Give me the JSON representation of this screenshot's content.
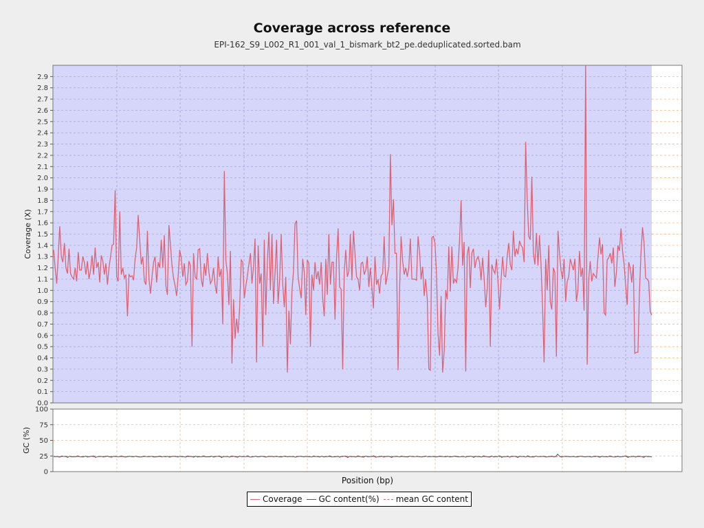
{
  "chart_data": {
    "type": "line",
    "title": "Coverage across reference",
    "subtitle": "EPI-162_S9_L002_R1_001_val_1_bismark_bt2_pe.deduplicated.sorted.bam",
    "xlabel": "Position (bp)",
    "panels": [
      {
        "name": "coverage",
        "ylabel": "Coverage (X)",
        "ylim": [
          0,
          3.0
        ],
        "yticks": [
          "0.0",
          "0.1",
          "0.2",
          "0.3",
          "0.4",
          "0.5",
          "0.6",
          "0.7",
          "0.8",
          "0.9",
          "1.0",
          "1.1",
          "1.2",
          "1.3",
          "1.4",
          "1.5",
          "1.6",
          "1.7",
          "1.8",
          "1.9",
          "2.0",
          "2.1",
          "2.2",
          "2.3",
          "2.4",
          "2.5",
          "2.6",
          "2.7",
          "2.8",
          "2.9"
        ],
        "series": [
          {
            "name": "Coverage",
            "color": "#e06070",
            "values": [
              1.36,
              1.2,
              1.06,
              1.3,
              1.57,
              1.3,
              1.25,
              1.42,
              1.2,
              1.15,
              1.37,
              1.15,
              1.12,
              1.1,
              1.2,
              1.08,
              1.34,
              1.18,
              1.18,
              1.3,
              1.25,
              1.14,
              1.26,
              1.1,
              1.18,
              1.31,
              1.14,
              1.38,
              1.2,
              1.25,
              1.07,
              1.31,
              1.26,
              1.14,
              1.24,
              1.05,
              1.2,
              1.3,
              1.4,
              1.41,
              1.89,
              1.12,
              1.08,
              1.7,
              1.14,
              1.2,
              1.11,
              1.14,
              0.77,
              1.14,
              1.12,
              1.13,
              1.09,
              1.28,
              1.38,
              1.67,
              1.45,
              1.23,
              1.3,
              1.08,
              1.05,
              1.53,
              1.1,
              0.97,
              1.12,
              1.25,
              1.3,
              1.07,
              1.25,
              1.2,
              1.45,
              1.2,
              1.49,
              1.04,
              0.96,
              1.58,
              1.4,
              1.22,
              1.11,
              1.04,
              0.95,
              1.13,
              1.36,
              1.29,
              1.12,
              1.24,
              1.05,
              1.08,
              1.26,
              1.22,
              0.5,
              1.33,
              1.12,
              1.1,
              1.36,
              1.37,
              1.1,
              1.03,
              1.24,
              1.13,
              1.33,
              1.16,
              1.06,
              1.09,
              1.2,
              1.05,
              0.97,
              1.3,
              1.12,
              1.19,
              0.7,
              2.06,
              1.27,
              1.15,
              0.87,
              1.35,
              0.35,
              0.92,
              0.57,
              0.75,
              0.62,
              0.85,
              1.27,
              1.25,
              0.93,
              1.04,
              1.13,
              1.23,
              1.33,
              1.06,
              1.21,
              1.46,
              0.36,
              1.4,
              1.06,
              1.15,
              0.5,
              1.45,
              0.78,
              1.26,
              1.52,
              1.0,
              1.5,
              0.88,
              1.16,
              1.45,
              0.88,
              1.1,
              1.5,
              1.06,
              0.85,
              1.12,
              0.27,
              0.82,
              0.52,
              1.0,
              1.17,
              1.59,
              1.62,
              1.12,
              1.02,
              0.93,
              1.28,
              1.16,
              0.78,
              1.27,
              1.24,
              0.5,
              1.14,
              1.0,
              1.25,
              1.1,
              1.17,
              1.05,
              1.25,
              0.93,
              0.77,
              1.28,
              0.96,
              1.5,
              1.05,
              1.25,
              1.25,
              0.74,
              1.29,
              1.55,
              1.03,
              1.01,
              0.3,
              1.16,
              1.36,
              1.12,
              1.17,
              1.5,
              1.09,
              1.53,
              1.32,
              1.12,
              1.1,
              1.0,
              1.24,
              1.25,
              1.14,
              1.18,
              1.3,
              1.03,
              1.2,
              1.02,
              0.84,
              1.3,
              1.05,
              1.1,
              0.97,
              1.13,
              1.15,
              1.48,
              1.05,
              1.13,
              1.21,
              2.21,
              1.58,
              1.81,
              1.33,
              1.33,
              0.29,
              1.0,
              1.48,
              1.26,
              1.14,
              1.2,
              1.12,
              1.2,
              1.46,
              1.1,
              1.1,
              1.1,
              1.09,
              1.48,
              1.34,
              1.1,
              1.21,
              0.95,
              1.1,
              0.92,
              0.3,
              0.29,
              1.47,
              1.48,
              1.42,
              1.15,
              0.62,
              0.42,
              0.95,
              0.27,
              0.46,
              1.0,
              0.92,
              1.39,
              0.99,
              1.39,
              1.06,
              1.1,
              1.07,
              1.2,
              1.44,
              1.8,
              1.22,
              1.43,
              0.28,
              1.32,
              1.39,
              1.02,
              1.33,
              1.37,
              1.2,
              1.27,
              1.3,
              1.25,
              1.09,
              1.29,
              1.11,
              0.85,
              1.02,
              1.36,
              0.5,
              1.23,
              1.18,
              1.15,
              1.28,
              1.08,
              0.83,
              1.09,
              1.3,
              1.13,
              1.12,
              1.31,
              1.42,
              1.23,
              1.18,
              1.53,
              1.3,
              1.37,
              1.32,
              1.44,
              1.4,
              1.38,
              1.25,
              2.32,
              1.81,
              1.48,
              1.45,
              2.01,
              1.33,
              1.23,
              1.51,
              1.22,
              1.49,
              1.22,
              0.85,
              0.36,
              1.28,
              1.0,
              1.4,
              0.9,
              0.83,
              1.2,
              1.16,
              0.41,
              1.53,
              1.33,
              1.18,
              1.1,
              1.28,
              0.9,
              1.08,
              1.12,
              1.28,
              1.23,
              1.18,
              1.28,
              0.9,
              1.0,
              1.35,
              1.12,
              1.2,
              0.82,
              3.0,
              0.34,
              1.1,
              1.26,
              1.08,
              1.15,
              1.13,
              1.11,
              1.29,
              1.47,
              1.32,
              1.41,
              0.8,
              0.78,
              1.27,
              1.29,
              1.33,
              1.24,
              1.38,
              1.03,
              1.16,
              1.4,
              1.35,
              1.55,
              1.35,
              1.24,
              1.05,
              0.87,
              1.25,
              1.2,
              1.07,
              1.23,
              0.44,
              0.45,
              0.45,
              0.98,
              1.33,
              1.56,
              1.42,
              1.11,
              1.1,
              1.08,
              0.81,
              0.78
            ]
          }
        ]
      },
      {
        "name": "gc",
        "ylabel": "GC (%)",
        "ylim": [
          0,
          100
        ],
        "yticks": [
          "0",
          "25",
          "50",
          "75",
          "100"
        ],
        "series": [
          {
            "name": "GC content(%)",
            "color": "#555555",
            "approx_value": 24
          },
          {
            "name": "mean GC content",
            "color": "#e06070",
            "value": 24
          }
        ]
      }
    ],
    "legend": {
      "position": "bottom-center",
      "entries": [
        {
          "label": "Coverage",
          "color": "#e06070",
          "style": "solid"
        },
        {
          "label": "GC content(%)",
          "color": "#555555",
          "style": "solid"
        },
        {
          "label": "mean GC content",
          "color": "#e06070",
          "style": "dashed"
        }
      ]
    },
    "grid": true
  }
}
